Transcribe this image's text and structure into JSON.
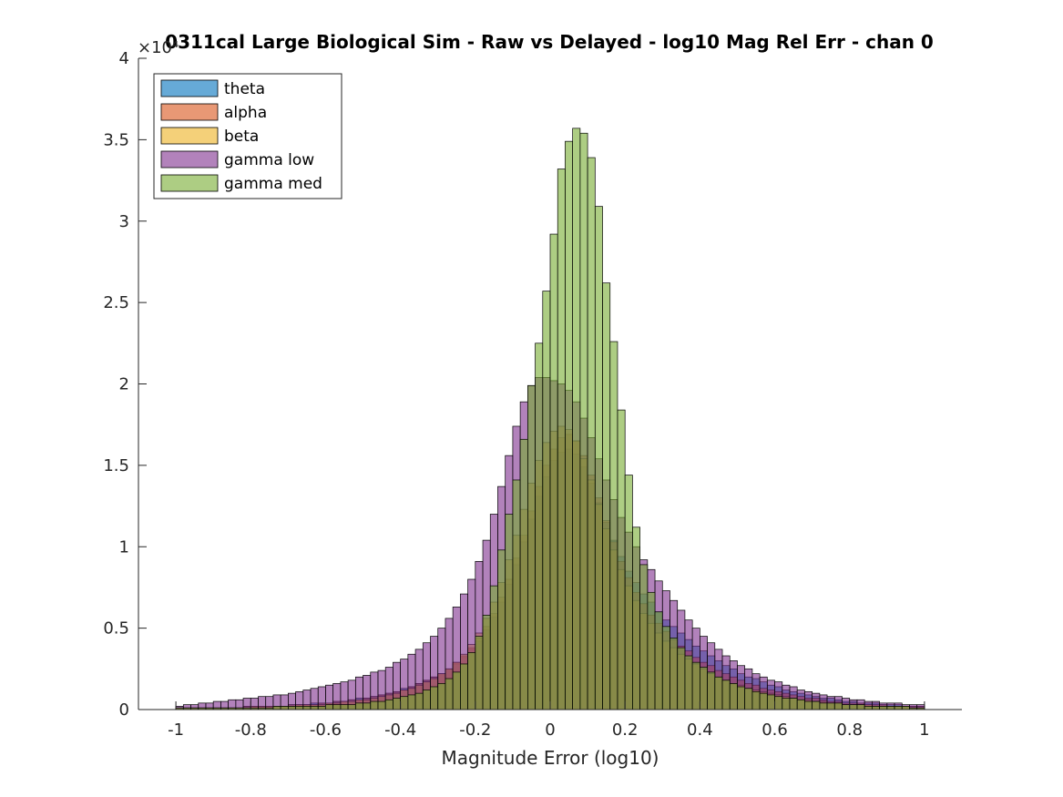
{
  "chart_data": {
    "type": "bar",
    "title": "0311cal Large Biological Sim - Raw vs Delayed - log10 Mag Rel Err - chan 0",
    "xlabel": "Magnitude Error (log10)",
    "ylabel": "",
    "y_exponent": "×10⁴",
    "xlim": [
      -1.1,
      1.1
    ],
    "ylim": [
      0,
      4
    ],
    "xticks": [
      -1,
      -0.8,
      -0.6,
      -0.4,
      -0.2,
      0,
      0.2,
      0.4,
      0.6,
      0.8,
      1
    ],
    "xtick_labels": [
      "-1",
      "-0.8",
      "-0.6",
      "-0.4",
      "-0.2",
      "0",
      "0.2",
      "0.4",
      "0.6",
      "0.8",
      "1"
    ],
    "yticks": [
      0,
      0.5,
      1,
      1.5,
      2,
      2.5,
      3,
      3.5,
      4
    ],
    "ytick_labels": [
      "0",
      "0.5",
      "1",
      "1.5",
      "2",
      "2.5",
      "3",
      "3.5",
      "4"
    ],
    "legend_position": "top-left",
    "grid": false,
    "bin_edges": {
      "start": -1,
      "end": 1,
      "count": 100
    },
    "series": [
      {
        "name": "theta",
        "color": "#0072BD",
        "values": [
          0.01,
          0.01,
          0.01,
          0.01,
          0.01,
          0.01,
          0.01,
          0.01,
          0.01,
          0.02,
          0.02,
          0.02,
          0.02,
          0.02,
          0.02,
          0.03,
          0.03,
          0.03,
          0.04,
          0.04,
          0.04,
          0.05,
          0.05,
          0.06,
          0.07,
          0.07,
          0.08,
          0.09,
          0.1,
          0.11,
          0.13,
          0.14,
          0.16,
          0.18,
          0.2,
          0.22,
          0.25,
          0.28,
          0.32,
          0.37,
          0.42,
          0.49,
          0.57,
          0.66,
          0.77,
          0.89,
          1.03,
          1.17,
          1.31,
          1.43,
          1.53,
          1.58,
          1.6,
          1.57,
          1.49,
          1.39,
          1.27,
          1.15,
          1.04,
          0.94,
          0.85,
          0.78,
          0.71,
          0.66,
          0.6,
          0.55,
          0.51,
          0.47,
          0.43,
          0.39,
          0.36,
          0.33,
          0.3,
          0.27,
          0.25,
          0.22,
          0.2,
          0.19,
          0.17,
          0.15,
          0.14,
          0.12,
          0.11,
          0.1,
          0.09,
          0.08,
          0.07,
          0.07,
          0.06,
          0.05,
          0.05,
          0.04,
          0.04,
          0.04,
          0.03,
          0.03,
          0.03,
          0.02,
          0.02,
          0.02
        ]
      },
      {
        "name": "alpha",
        "color": "#D95319",
        "values": [
          0.01,
          0.01,
          0.01,
          0.01,
          0.01,
          0.01,
          0.01,
          0.01,
          0.01,
          0.02,
          0.02,
          0.02,
          0.02,
          0.02,
          0.02,
          0.03,
          0.03,
          0.03,
          0.03,
          0.04,
          0.04,
          0.05,
          0.05,
          0.06,
          0.06,
          0.07,
          0.08,
          0.09,
          0.1,
          0.11,
          0.12,
          0.14,
          0.16,
          0.18,
          0.2,
          0.22,
          0.25,
          0.29,
          0.33,
          0.38,
          0.44,
          0.51,
          0.59,
          0.69,
          0.8,
          0.93,
          1.07,
          1.22,
          1.37,
          1.5,
          1.6,
          1.67,
          1.69,
          1.65,
          1.56,
          1.44,
          1.3,
          1.16,
          1.03,
          0.91,
          0.81,
          0.72,
          0.65,
          0.58,
          0.53,
          0.48,
          0.43,
          0.39,
          0.36,
          0.32,
          0.29,
          0.27,
          0.24,
          0.22,
          0.2,
          0.18,
          0.16,
          0.15,
          0.13,
          0.12,
          0.11,
          0.1,
          0.09,
          0.08,
          0.07,
          0.07,
          0.06,
          0.05,
          0.05,
          0.04,
          0.04,
          0.04,
          0.03,
          0.03,
          0.03,
          0.02,
          0.02,
          0.02,
          0.02,
          0.02
        ]
      },
      {
        "name": "beta",
        "color": "#EDB120",
        "values": [
          0.01,
          0.01,
          0.01,
          0.01,
          0.01,
          0.01,
          0.01,
          0.01,
          0.01,
          0.01,
          0.02,
          0.02,
          0.02,
          0.02,
          0.02,
          0.02,
          0.03,
          0.03,
          0.03,
          0.03,
          0.04,
          0.04,
          0.05,
          0.05,
          0.06,
          0.06,
          0.07,
          0.08,
          0.09,
          0.1,
          0.12,
          0.13,
          0.15,
          0.17,
          0.19,
          0.22,
          0.25,
          0.29,
          0.34,
          0.4,
          0.47,
          0.56,
          0.66,
          0.78,
          0.92,
          1.07,
          1.23,
          1.39,
          1.53,
          1.64,
          1.71,
          1.74,
          1.72,
          1.65,
          1.54,
          1.41,
          1.26,
          1.11,
          0.98,
          0.86,
          0.76,
          0.67,
          0.59,
          0.53,
          0.47,
          0.42,
          0.38,
          0.34,
          0.31,
          0.28,
          0.25,
          0.22,
          0.2,
          0.18,
          0.16,
          0.15,
          0.13,
          0.12,
          0.11,
          0.1,
          0.09,
          0.08,
          0.07,
          0.06,
          0.06,
          0.05,
          0.05,
          0.04,
          0.04,
          0.03,
          0.03,
          0.03,
          0.03,
          0.02,
          0.02,
          0.02,
          0.02,
          0.02,
          0.01,
          0.01
        ]
      },
      {
        "name": "gamma low",
        "color": "#7E2F8E",
        "values": [
          0.02,
          0.03,
          0.03,
          0.04,
          0.04,
          0.05,
          0.05,
          0.06,
          0.06,
          0.07,
          0.07,
          0.08,
          0.08,
          0.09,
          0.09,
          0.1,
          0.11,
          0.12,
          0.13,
          0.14,
          0.15,
          0.16,
          0.17,
          0.18,
          0.2,
          0.21,
          0.23,
          0.24,
          0.26,
          0.29,
          0.31,
          0.34,
          0.37,
          0.41,
          0.45,
          0.5,
          0.56,
          0.63,
          0.71,
          0.8,
          0.91,
          1.04,
          1.2,
          1.37,
          1.56,
          1.74,
          1.89,
          1.99,
          2.04,
          2.04,
          2.02,
          2,
          1.96,
          1.89,
          1.79,
          1.67,
          1.54,
          1.41,
          1.29,
          1.18,
          1.09,
          1,
          0.92,
          0.86,
          0.79,
          0.73,
          0.67,
          0.61,
          0.55,
          0.5,
          0.45,
          0.41,
          0.37,
          0.33,
          0.3,
          0.27,
          0.25,
          0.22,
          0.2,
          0.18,
          0.17,
          0.15,
          0.14,
          0.12,
          0.11,
          0.1,
          0.09,
          0.08,
          0.08,
          0.07,
          0.06,
          0.06,
          0.05,
          0.05,
          0.04,
          0.04,
          0.04,
          0.03,
          0.03,
          0.03
        ]
      },
      {
        "name": "gamma med",
        "color": "#77AC30",
        "values": [
          0.01,
          0.01,
          0.01,
          0.01,
          0.01,
          0.01,
          0.01,
          0.01,
          0.01,
          0.01,
          0.01,
          0.01,
          0.01,
          0.02,
          0.02,
          0.02,
          0.02,
          0.02,
          0.02,
          0.02,
          0.03,
          0.03,
          0.03,
          0.03,
          0.04,
          0.04,
          0.05,
          0.05,
          0.06,
          0.07,
          0.08,
          0.09,
          0.1,
          0.12,
          0.14,
          0.16,
          0.19,
          0.23,
          0.28,
          0.35,
          0.45,
          0.58,
          0.76,
          0.98,
          1.2,
          1.41,
          1.66,
          1.99,
          2.25,
          2.57,
          2.92,
          3.32,
          3.49,
          3.57,
          3.54,
          3.39,
          3.09,
          2.62,
          2.26,
          1.84,
          1.44,
          1.12,
          0.89,
          0.72,
          0.6,
          0.51,
          0.44,
          0.38,
          0.33,
          0.29,
          0.26,
          0.23,
          0.2,
          0.18,
          0.16,
          0.14,
          0.13,
          0.11,
          0.1,
          0.09,
          0.08,
          0.07,
          0.07,
          0.06,
          0.05,
          0.05,
          0.04,
          0.04,
          0.04,
          0.03,
          0.03,
          0.03,
          0.02,
          0.02,
          0.02,
          0.02,
          0.02,
          0.02,
          0.01,
          0.01
        ]
      }
    ]
  }
}
